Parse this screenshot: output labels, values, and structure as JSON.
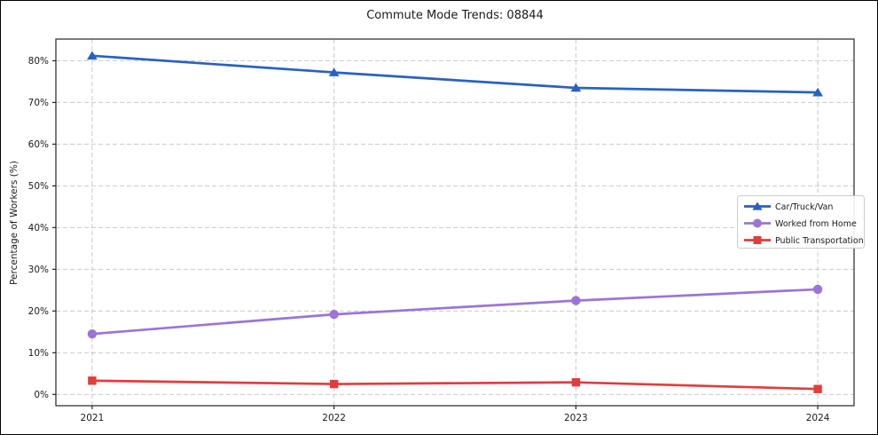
{
  "figure": {
    "background": "#ffffff",
    "border_color": "#000000"
  },
  "chart_data": {
    "type": "line",
    "title": "Commute Mode Trends: 08844",
    "xlabel": "",
    "ylabel": "Percentage of Workers (%)",
    "x": [
      2021,
      2022,
      2023,
      2024
    ],
    "xtick_labels": [
      "2021",
      "2022",
      "2023",
      "2024"
    ],
    "yticks": [
      0,
      10,
      20,
      30,
      40,
      50,
      60,
      70,
      80
    ],
    "ytick_suffix": "%",
    "xlim": [
      2020.85,
      2024.15
    ],
    "ylim": [
      -2.7,
      85.2
    ],
    "grid": true,
    "grid_style": "dashed",
    "legend_position": "center right",
    "series": [
      {
        "name": "Car/Truck/Van",
        "marker": "triangle-up",
        "color": "#2961c3",
        "values": [
          81.2,
          77.2,
          73.5,
          72.4
        ]
      },
      {
        "name": "Worked from Home",
        "marker": "circle",
        "color": "#9b74d8",
        "values": [
          14.5,
          19.2,
          22.5,
          25.2
        ]
      },
      {
        "name": "Public Transportation",
        "marker": "square",
        "color": "#e23c3c",
        "values": [
          3.3,
          2.5,
          2.9,
          1.3
        ]
      }
    ],
    "colors": {
      "grid": "#c9c9c9",
      "spine": "#262626",
      "text": "#1a1a1a",
      "legend_border": "#cccccc",
      "legend_bg": "#ffffff"
    }
  }
}
